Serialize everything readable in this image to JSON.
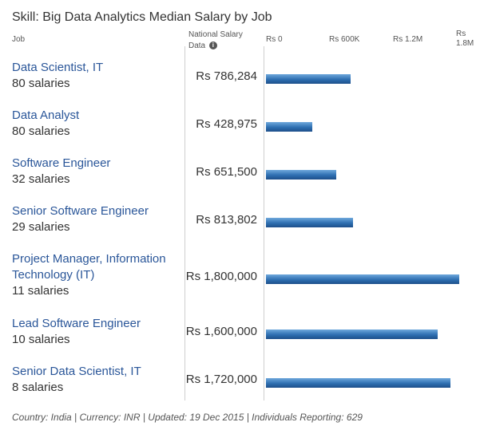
{
  "title": "Skill: Big Data Analytics Median Salary by Job",
  "columns": {
    "job": "Job",
    "salary_line1": "National Salary",
    "salary_line2": "Data",
    "info_icon": "info-icon"
  },
  "footer": "Country: India | Currency: INR | Updated: 19 Dec 2015 | Individuals Reporting: 629",
  "chart_data": {
    "type": "bar",
    "orientation": "horizontal",
    "title": "Skill: Big Data Analytics Median Salary by Job",
    "xlim": [
      0,
      1800000
    ],
    "ticks": [
      {
        "value": 0,
        "label": "Rs 0"
      },
      {
        "value": 600000,
        "label": "Rs 600K"
      },
      {
        "value": 1200000,
        "label": "Rs 1.2M"
      },
      {
        "value": 1800000,
        "label": "Rs 1.8M"
      }
    ],
    "categories": [
      "Data Scientist, IT",
      "Data Analyst",
      "Software Engineer",
      "Senior Software Engineer",
      "Project Manager, Information Technology (IT)",
      "Lead Software Engineer",
      "Senior Data Scientist, IT"
    ],
    "counts": [
      "80 salaries",
      "80 salaries",
      "32 salaries",
      "29 salaries",
      "11 salaries",
      "10 salaries",
      "8 salaries"
    ],
    "values": [
      786284,
      428975,
      651500,
      813802,
      1800000,
      1600000,
      1720000
    ],
    "value_labels": [
      "Rs 786,284",
      "Rs 428,975",
      "Rs 651,500",
      "Rs 813,802",
      "Rs 1,800,000",
      "Rs 1,600,000",
      "Rs 1,720,000"
    ],
    "bar_color": "#2e6fb1"
  }
}
